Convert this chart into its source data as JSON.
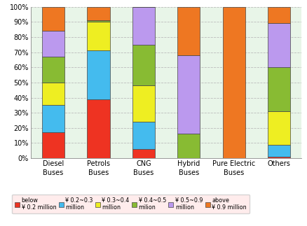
{
  "categories": [
    "Diesel\nBuses",
    "Petrols\nBuses",
    "CNG\nBuses",
    "Hybrid\nBuses",
    "Pure Electric\nBuses",
    "Others"
  ],
  "series": [
    {
      "label": "below\n¥ 0.2 million",
      "color": "#EE3322",
      "values": [
        17,
        39,
        6,
        0,
        0,
        1
      ]
    },
    {
      "label": "¥ 0.2~0.3\nmillion",
      "color": "#44BBEE",
      "values": [
        18,
        32,
        18,
        0,
        0,
        8
      ]
    },
    {
      "label": "¥ 0.3~0.4\nmillion",
      "color": "#EEEE22",
      "values": [
        15,
        19,
        24,
        0,
        0,
        22
      ]
    },
    {
      "label": "¥ 0.4~0.5\nmilion",
      "color": "#88BB33",
      "values": [
        17,
        1,
        27,
        16,
        0,
        29
      ]
    },
    {
      "label": "¥ 0.5~0.9\nmillion",
      "color": "#BB99EE",
      "values": [
        17,
        0,
        25,
        52,
        0,
        29
      ]
    },
    {
      "label": "above\n¥ 0.9 million",
      "color": "#EE7722",
      "values": [
        16,
        9,
        0,
        32,
        100,
        11
      ]
    }
  ],
  "ylim": [
    0,
    100
  ],
  "yticks": [
    0,
    10,
    20,
    30,
    40,
    50,
    60,
    70,
    80,
    90,
    100
  ],
  "ytick_labels": [
    "0%",
    "10%",
    "20%",
    "30%",
    "40%",
    "50%",
    "60%",
    "70%",
    "80%",
    "90%",
    "100%"
  ],
  "figure_bg": "#FFFFFF",
  "axes_bg": "#E8F5E8",
  "legend_bg": "#FFE8E8",
  "bar_width": 0.5,
  "bar_edge_color": "#444444",
  "grid_color": "#BBBBBB",
  "tick_fontsize": 7,
  "legend_fontsize": 5.8
}
